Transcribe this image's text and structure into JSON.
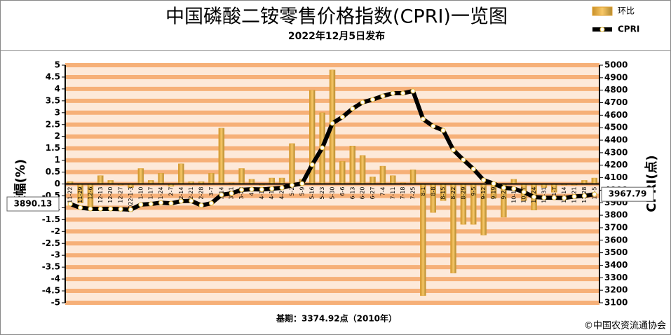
{
  "chart_data": {
    "type": "bar",
    "title": "中国磷酸二铵零售价格指数(CPRI)一览图",
    "subtitle": "2022年12月5日发布",
    "y_label": "涨幅(%)",
    "y2_label": "CPRI(点)",
    "base_note": "基期：3374.92点（2010年）",
    "copyright": "©中国农资流通协会",
    "annotations": [
      "3890.13",
      "3967.79"
    ],
    "categories": [
      "11-22",
      "11-29",
      "12-6",
      "12-13",
      "12-20",
      "12-27",
      "2022-1-3",
      "1-10",
      "1-17",
      "1-24",
      "2-7",
      "2-14",
      "2-21",
      "2-28",
      "3-7",
      "3-14",
      "3-21",
      "3-28",
      "4-4",
      "4-11",
      "4-18",
      "4-25",
      "5-2",
      "5-9",
      "5-16",
      "5-23",
      "5-30",
      "6-6",
      "6-13",
      "6-20",
      "6-27",
      "7-4",
      "7-11",
      "7-18",
      "7-25",
      "8-1",
      "8-8",
      "8-15",
      "8-22",
      "8-29",
      "9-5",
      "9-12",
      "9-19",
      "9-26",
      "10-10",
      "10-17",
      "10-24",
      "10-31",
      "11-7",
      "11-14",
      "11-21",
      "11-28",
      "12-5"
    ],
    "series": [
      {
        "name": "环比",
        "type": "bar",
        "color": "#e0a030",
        "values": [
          0.1,
          -0.8,
          -1.1,
          0.35,
          0.15,
          -0.05,
          -0.15,
          0.65,
          0.15,
          0.45,
          -0.1,
          0.85,
          0.1,
          0.1,
          0.45,
          2.35,
          0.05,
          0.65,
          0.2,
          -0.05,
          0.25,
          0.25,
          1.7,
          0.2,
          3.95,
          3.0,
          4.8,
          0.95,
          1.6,
          1.2,
          0.3,
          0.75,
          0.35,
          0.05,
          0.6,
          -4.7,
          -1.2,
          -0.7,
          -3.75,
          -1.7,
          -1.7,
          -2.15,
          -0.6,
          -1.4,
          0.2,
          -0.7,
          -1.1,
          -0.15,
          -0.35,
          -0.05,
          -0.05,
          0.15,
          0.25
        ]
      },
      {
        "name": "CPRI",
        "type": "line",
        "axis": "y2",
        "color": "#000000",
        "values": [
          3890.13,
          3860,
          3851,
          3851,
          3851,
          3849,
          3845,
          3885,
          3890,
          3900,
          3895,
          3913,
          3915,
          3879,
          3896,
          3963,
          3975,
          4003,
          4008,
          4006,
          4012,
          4019,
          4040,
          4053,
          4204,
          4339,
          4535,
          4585,
          4652,
          4703,
          4725,
          4753,
          4776,
          4776,
          4793,
          4569,
          4512,
          4479,
          4322,
          4243,
          4170,
          4081,
          4053,
          4019,
          4013,
          3985,
          3946,
          3941,
          3940,
          3938,
          3950,
          3955,
          3967.79
        ]
      }
    ],
    "ylim": [
      -5,
      5
    ],
    "yticks": [
      -5,
      -4.5,
      -4,
      -3.5,
      -3,
      -2.5,
      -2,
      -1.5,
      -1,
      -0.5,
      0,
      0.5,
      1,
      1.5,
      2,
      2.5,
      3,
      3.5,
      4,
      4.5,
      5
    ],
    "y2lim": [
      3100,
      5000
    ],
    "y2ticks": [
      3100,
      3200,
      3300,
      3400,
      3500,
      3600,
      3700,
      3800,
      3900,
      4000,
      4100,
      4200,
      4300,
      4400,
      4500,
      4600,
      4700,
      4800,
      4900,
      5000
    ],
    "grid": true,
    "legend": "top-right"
  }
}
